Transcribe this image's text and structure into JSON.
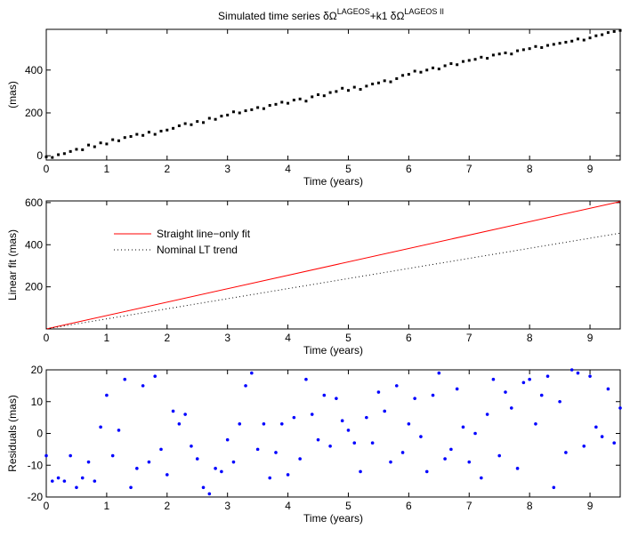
{
  "chart_data": [
    {
      "type": "scatter",
      "title": [
        "Simulated time series δΩ",
        "LAGEOS",
        "+k1 δΩ",
        "LAGEOS II"
      ],
      "ylabel": "(mas)",
      "xlabel": "Time (years)",
      "color": "#000000",
      "marker": "square",
      "xlim": [
        0,
        9.5
      ],
      "xticks": [
        0,
        1,
        2,
        3,
        4,
        5,
        6,
        7,
        8,
        9
      ],
      "ylim": [
        -20,
        590
      ],
      "yticks": [
        0,
        200,
        400
      ],
      "x": [
        0,
        0.1,
        0.2,
        0.3,
        0.4,
        0.5,
        0.6,
        0.7,
        0.8,
        0.9,
        1,
        1.1,
        1.2,
        1.3,
        1.4,
        1.5,
        1.6,
        1.7,
        1.8,
        1.9,
        2,
        2.1,
        2.2,
        2.3,
        2.4,
        2.5,
        2.6,
        2.7,
        2.8,
        2.9,
        3,
        3.1,
        3.2,
        3.3,
        3.4,
        3.5,
        3.6,
        3.7,
        3.8,
        3.9,
        4,
        4.1,
        4.2,
        4.3,
        4.4,
        4.5,
        4.6,
        4.7,
        4.8,
        4.9,
        5,
        5.1,
        5.2,
        5.3,
        5.4,
        5.5,
        5.6,
        5.7,
        5.8,
        5.9,
        6,
        6.1,
        6.2,
        6.3,
        6.4,
        6.5,
        6.6,
        6.7,
        6.8,
        6.9,
        7,
        7.1,
        7.2,
        7.3,
        7.4,
        7.5,
        7.6,
        7.7,
        7.8,
        7.9,
        8,
        8.1,
        8.2,
        8.3,
        8.4,
        8.5,
        8.6,
        8.7,
        8.8,
        8.9,
        9,
        9.1,
        9.2,
        9.3,
        9.4,
        9.5
      ],
      "values": [
        -5,
        -8,
        5,
        10,
        20,
        30,
        28,
        50,
        42,
        60,
        55,
        75,
        70,
        85,
        90,
        100,
        95,
        110,
        100,
        115,
        120,
        128,
        140,
        150,
        145,
        160,
        155,
        175,
        170,
        185,
        190,
        205,
        200,
        210,
        215,
        225,
        220,
        235,
        240,
        250,
        245,
        260,
        265,
        255,
        275,
        285,
        280,
        295,
        300,
        315,
        305,
        320,
        310,
        325,
        335,
        340,
        350,
        345,
        360,
        375,
        380,
        395,
        390,
        400,
        410,
        405,
        420,
        430,
        425,
        440,
        445,
        450,
        460,
        455,
        470,
        475,
        480,
        475,
        490,
        495,
        500,
        510,
        505,
        515,
        520,
        525,
        530,
        535,
        545,
        540,
        550,
        560,
        565,
        575,
        580,
        585
      ]
    },
    {
      "type": "line",
      "ylabel": "Linear fit (mas)",
      "xlabel": "Time (years)",
      "xlim": [
        0,
        9.5
      ],
      "xticks": [
        0,
        1,
        2,
        3,
        4,
        5,
        6,
        7,
        8,
        9
      ],
      "ylim": [
        0,
        608
      ],
      "yticks": [
        200,
        400,
        600
      ],
      "x": [
        0,
        9.5
      ],
      "series": [
        {
          "name": "Straight line−only fit",
          "color": "#ff0000",
          "linestyle": "solid",
          "values": [
            0,
            605
          ]
        },
        {
          "name": "Nominal LT trend",
          "color": "#000000",
          "linestyle": "dotted",
          "values": [
            0,
            455
          ]
        }
      ]
    },
    {
      "type": "scatter",
      "ylabel": "Residuals (mas)",
      "xlabel": "Time (years)",
      "color": "#0000ff",
      "marker": "circle",
      "xlim": [
        0,
        9.5
      ],
      "xticks": [
        0,
        1,
        2,
        3,
        4,
        5,
        6,
        7,
        8,
        9
      ],
      "ylim": [
        -20,
        20
      ],
      "yticks": [
        -20,
        -10,
        0,
        10,
        20
      ],
      "x": [
        0,
        0.1,
        0.2,
        0.3,
        0.4,
        0.5,
        0.6,
        0.7,
        0.8,
        0.9,
        1,
        1.1,
        1.2,
        1.3,
        1.4,
        1.5,
        1.6,
        1.7,
        1.8,
        1.9,
        2,
        2.1,
        2.2,
        2.3,
        2.4,
        2.5,
        2.6,
        2.7,
        2.8,
        2.9,
        3,
        3.1,
        3.2,
        3.3,
        3.4,
        3.5,
        3.6,
        3.7,
        3.8,
        3.9,
        4,
        4.1,
        4.2,
        4.3,
        4.4,
        4.5,
        4.6,
        4.7,
        4.8,
        4.9,
        5,
        5.1,
        5.2,
        5.3,
        5.4,
        5.5,
        5.6,
        5.7,
        5.8,
        5.9,
        6,
        6.1,
        6.2,
        6.3,
        6.4,
        6.5,
        6.6,
        6.7,
        6.8,
        6.9,
        7,
        7.1,
        7.2,
        7.3,
        7.4,
        7.5,
        7.6,
        7.7,
        7.8,
        7.9,
        8,
        8.1,
        8.2,
        8.3,
        8.4,
        8.5,
        8.6,
        8.7,
        8.8,
        8.9,
        9,
        9.1,
        9.2,
        9.3,
        9.4,
        9.5
      ],
      "values": [
        -7,
        -15,
        -14,
        -15,
        -7,
        -17,
        -14,
        -9,
        -15,
        2,
        12,
        -7,
        1,
        17,
        -17,
        -11,
        15,
        -9,
        18,
        -5,
        -13,
        7,
        3,
        6,
        -4,
        -8,
        -17,
        -19,
        -11,
        -12,
        -2,
        -9,
        3,
        15,
        19,
        -5,
        3,
        -14,
        -6,
        3,
        -13,
        5,
        -8,
        17,
        6,
        -2,
        12,
        -4,
        11,
        4,
        1,
        -3,
        -12,
        5,
        -3,
        13,
        7,
        -9,
        15,
        -6,
        3,
        11,
        -1,
        -12,
        12,
        19,
        -8,
        -5,
        14,
        2,
        -9,
        0,
        -14,
        6,
        17,
        -7,
        13,
        8,
        -11,
        16,
        17,
        3,
        12,
        18,
        -17,
        10,
        -6,
        20,
        19,
        -4,
        18,
        2,
        -1,
        14,
        -3,
        8
      ]
    }
  ]
}
